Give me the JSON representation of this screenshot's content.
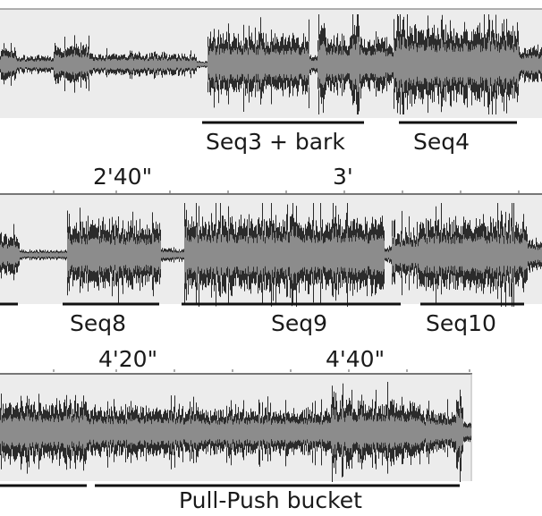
{
  "rows": [
    {
      "id": "row1",
      "time_labels": [],
      "segment_labels": [
        "Seq3 + bark",
        "Seq4"
      ]
    },
    {
      "id": "row2",
      "time_labels": [
        "2'40\"",
        "3'"
      ],
      "segment_labels": [
        "Seq8",
        "Seq9",
        "Seq10"
      ]
    },
    {
      "id": "row3",
      "time_labels": [
        "4'20\"",
        "4'40\""
      ],
      "segment_labels": [
        "Pull-Push bucket"
      ]
    }
  ],
  "colors": {
    "waveform_outer": "#2b2b2b",
    "waveform_inner": "#8c8c8c",
    "track_background": "#ececec",
    "baseline": "#9a9a9a",
    "segment_bar": "#111111",
    "text": "#1a1a1a"
  }
}
